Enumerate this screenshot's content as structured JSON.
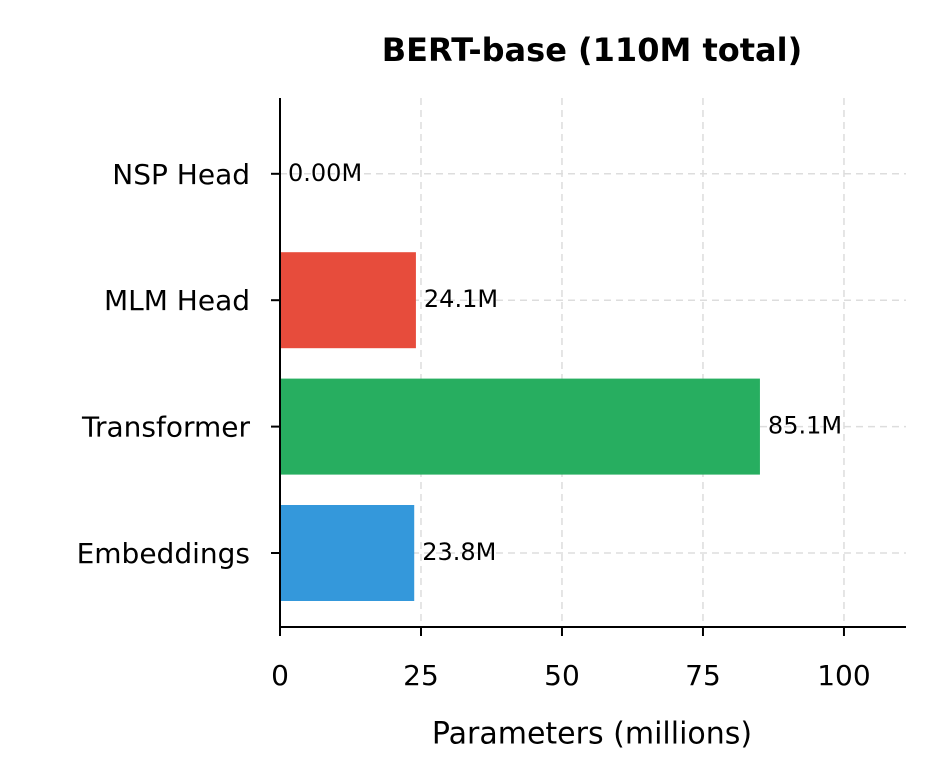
{
  "chart_data": {
    "type": "barh",
    "title": "BERT-base (110M total)",
    "xlabel": "Parameters (millions)",
    "categories": [
      "Embeddings",
      "Transformer",
      "MLM Head",
      "NSP Head"
    ],
    "values": [
      23.8,
      85.1,
      24.1,
      0.0015
    ],
    "value_labels": [
      "23.8M",
      "85.1M",
      "24.1M",
      "0.00M"
    ],
    "colors": [
      "#3498db",
      "#27ae60",
      "#e74c3c",
      "#95a5a6"
    ],
    "xlim": [
      0,
      111
    ],
    "xticks": [
      0,
      25,
      50,
      75,
      100
    ],
    "grid": true
  }
}
